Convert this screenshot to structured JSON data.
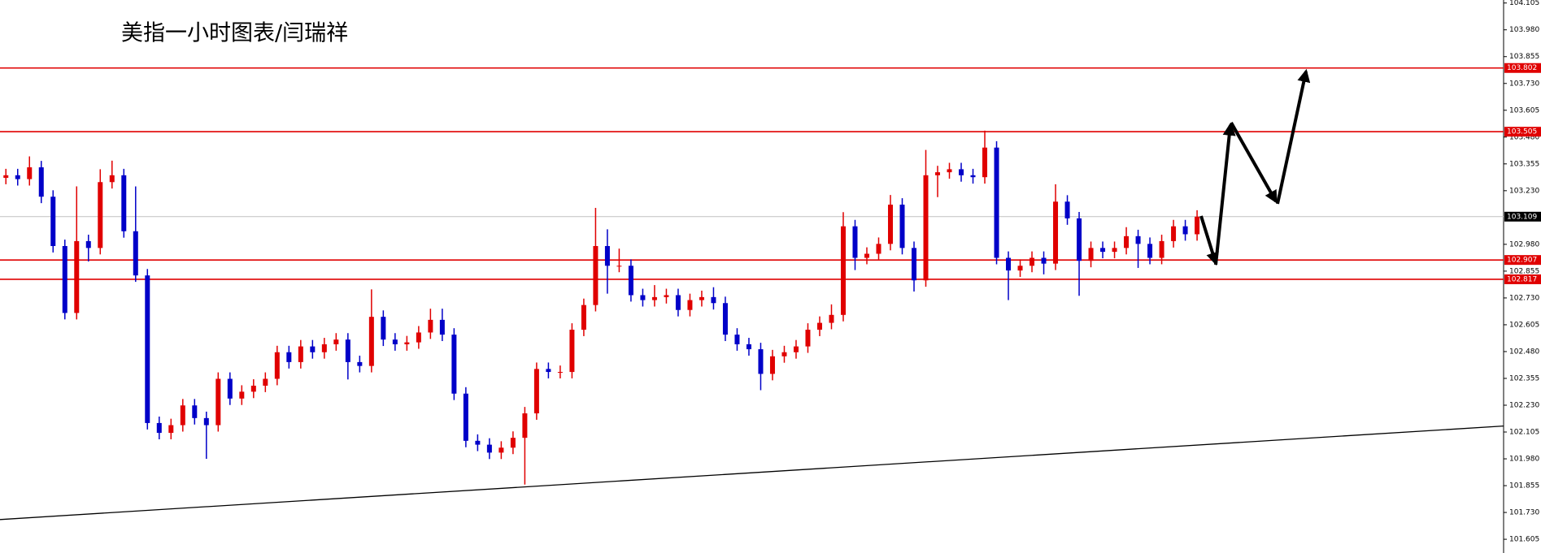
{
  "chart_data": {
    "type": "candlestick",
    "title": "美指一小时图表/闫瑞祥",
    "ylim": [
      101.541,
      104.119
    ],
    "yticks": [
      104.105,
      {
        "value": 103.98,
        "label": "103.980"
      },
      103.855,
      {
        "value": 103.73,
        "label": "103.730"
      },
      103.605,
      {
        "value": 103.48,
        "label": "103.480"
      },
      103.355,
      {
        "value": 103.23,
        "label": "103.230"
      },
      {
        "value": 102.98,
        "label": "102.980"
      },
      102.855,
      {
        "value": 102.73,
        "label": "102.730"
      },
      102.605,
      {
        "value": 102.48,
        "label": "102.480"
      },
      102.355,
      {
        "value": 102.23,
        "label": "102.230"
      },
      102.105,
      {
        "value": 101.98,
        "label": "101.980"
      },
      101.855,
      {
        "value": 101.73,
        "label": "101.730"
      },
      101.605
    ],
    "up_color": "#e00000",
    "down_color": "#0000c8",
    "open": [
      103.29,
      103.302,
      103.284,
      103.339,
      103.202,
      102.972,
      102.66,
      102.995,
      102.963,
      103.27,
      103.302,
      103.041,
      102.835,
      102.147,
      102.101,
      102.137,
      102.229,
      102.17,
      102.137,
      102.353,
      102.261,
      102.293,
      102.321,
      102.353,
      102.477,
      102.431,
      102.504,
      102.477,
      102.514,
      102.536,
      102.431,
      102.413,
      102.642,
      102.536,
      102.514,
      102.523,
      102.569,
      102.628,
      102.559,
      102.284,
      102.064,
      102.046,
      102.009,
      102.032,
      102.078,
      102.192,
      102.399,
      102.385,
      102.385,
      102.582,
      102.697,
      102.972,
      102.88,
      102.88,
      102.743,
      102.72,
      102.734,
      102.743,
      102.674,
      102.72,
      102.734,
      102.706,
      102.559,
      102.514,
      102.491,
      102.376,
      102.458,
      102.477,
      102.504,
      102.582,
      102.614,
      102.651,
      103.064,
      102.917,
      102.936,
      102.982,
      103.165,
      102.963,
      102.812,
      103.302,
      103.316,
      103.33,
      103.302,
      103.293,
      103.431,
      102.917,
      102.858,
      102.88,
      102.917,
      102.89,
      103.179,
      103.101,
      102.903,
      102.963,
      102.945,
      102.963,
      103.018,
      102.982,
      102.917,
      102.995,
      103.064,
      103.027
    ],
    "high": [
      103.332,
      103.332,
      103.39,
      103.369,
      103.232,
      103.002,
      103.25,
      103.025,
      103.33,
      103.37,
      103.332,
      103.25,
      102.865,
      102.177,
      102.167,
      102.259,
      102.259,
      102.2,
      102.383,
      102.383,
      102.323,
      102.351,
      102.383,
      102.507,
      102.507,
      102.534,
      102.534,
      102.544,
      102.566,
      102.566,
      102.461,
      102.77,
      102.672,
      102.566,
      102.553,
      102.599,
      102.68,
      102.68,
      102.589,
      102.314,
      102.094,
      102.076,
      102.062,
      102.108,
      102.222,
      102.429,
      102.429,
      102.415,
      102.612,
      102.727,
      103.15,
      103.05,
      102.96,
      102.91,
      102.773,
      102.79,
      102.773,
      102.773,
      102.75,
      102.764,
      102.78,
      102.736,
      102.589,
      102.544,
      102.521,
      102.488,
      102.507,
      102.534,
      102.612,
      102.644,
      102.7,
      103.13,
      103.094,
      102.966,
      103.012,
      103.21,
      103.195,
      102.993,
      103.42,
      103.346,
      103.36,
      103.36,
      103.332,
      103.51,
      103.461,
      102.947,
      102.91,
      102.947,
      102.947,
      103.26,
      103.209,
      103.131,
      102.993,
      102.993,
      102.993,
      103.06,
      103.048,
      103.012,
      103.025,
      103.094,
      103.094,
      103.139
    ],
    "low": [
      103.26,
      103.254,
      103.254,
      103.172,
      102.942,
      102.63,
      102.63,
      102.9,
      102.933,
      103.24,
      103.011,
      102.805,
      102.117,
      102.071,
      102.071,
      102.107,
      102.14,
      101.98,
      102.107,
      102.231,
      102.231,
      102.263,
      102.291,
      102.323,
      102.401,
      102.401,
      102.447,
      102.447,
      102.484,
      102.35,
      102.383,
      102.383,
      102.506,
      102.484,
      102.484,
      102.493,
      102.539,
      102.529,
      102.254,
      102.034,
      102.016,
      101.979,
      101.979,
      102.002,
      101.86,
      102.162,
      102.355,
      102.355,
      102.355,
      102.552,
      102.667,
      102.75,
      102.85,
      102.713,
      102.69,
      102.69,
      102.704,
      102.644,
      102.644,
      102.69,
      102.676,
      102.529,
      102.484,
      102.461,
      102.3,
      102.346,
      102.428,
      102.447,
      102.474,
      102.552,
      102.584,
      102.621,
      102.86,
      102.887,
      102.906,
      102.952,
      102.933,
      102.76,
      102.782,
      103.2,
      103.286,
      103.272,
      103.263,
      103.263,
      102.887,
      102.72,
      102.828,
      102.85,
      102.84,
      102.86,
      103.071,
      102.74,
      102.873,
      102.915,
      102.915,
      102.933,
      102.87,
      102.887,
      102.887,
      102.965,
      102.997,
      102.997
    ],
    "close": [
      103.302,
      103.284,
      103.339,
      103.202,
      102.972,
      102.66,
      102.995,
      102.963,
      103.27,
      103.302,
      103.041,
      102.835,
      102.147,
      102.101,
      102.137,
      102.229,
      102.17,
      102.137,
      102.353,
      102.261,
      102.293,
      102.321,
      102.353,
      102.477,
      102.431,
      102.504,
      102.477,
      102.514,
      102.536,
      102.431,
      102.413,
      102.642,
      102.536,
      102.514,
      102.523,
      102.569,
      102.628,
      102.559,
      102.284,
      102.064,
      102.046,
      102.009,
      102.032,
      102.078,
      102.192,
      102.399,
      102.385,
      102.385,
      102.582,
      102.697,
      102.972,
      102.88,
      102.88,
      102.743,
      102.72,
      102.734,
      102.743,
      102.674,
      102.72,
      102.734,
      102.706,
      102.559,
      102.514,
      102.491,
      102.376,
      102.458,
      102.477,
      102.504,
      102.582,
      102.614,
      102.651,
      103.064,
      102.917,
      102.936,
      102.982,
      103.165,
      102.963,
      102.812,
      103.302,
      103.316,
      103.33,
      103.302,
      103.293,
      103.431,
      102.917,
      102.858,
      102.88,
      102.917,
      102.89,
      103.179,
      103.101,
      102.903,
      102.963,
      102.945,
      102.963,
      103.018,
      102.982,
      102.917,
      102.995,
      103.064,
      103.027,
      103.109
    ],
    "levels": [
      {
        "value": 103.802,
        "color": "#e00000"
      },
      {
        "value": 103.505,
        "color": "#e00000"
      },
      {
        "value": 102.907,
        "color": "#e00000"
      },
      {
        "value": 102.817,
        "color": "#e00000"
      }
    ],
    "current_price": {
      "value": 103.109,
      "color": "#c0c0c0"
    },
    "trendline": {
      "start": 101.697,
      "end": 102.133,
      "color": "#000000"
    }
  }
}
